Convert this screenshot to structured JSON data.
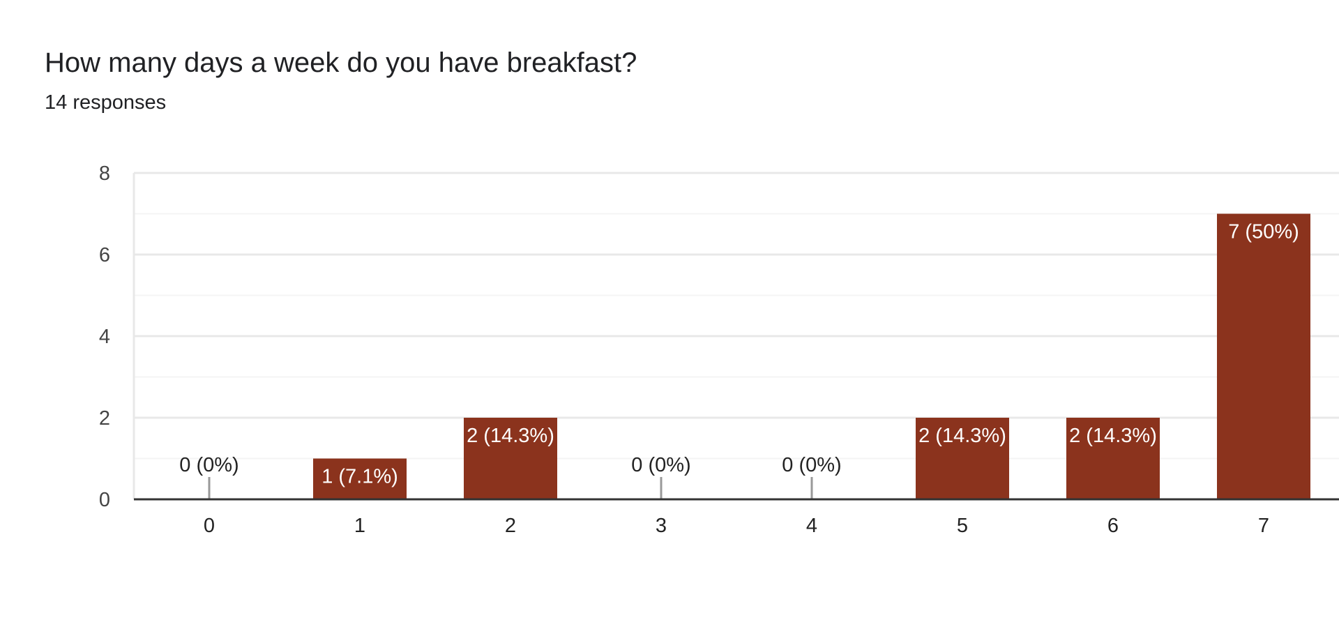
{
  "header": {
    "title": "How many days a week do you have breakfast?",
    "subtitle": "14 responses"
  },
  "chart_data": {
    "type": "bar",
    "title": "How many days a week do you have breakfast?",
    "subtitle": "14 responses",
    "xlabel": "",
    "ylabel": "",
    "categories": [
      "0",
      "1",
      "2",
      "3",
      "4",
      "5",
      "6",
      "7"
    ],
    "values": [
      0,
      1,
      2,
      0,
      0,
      2,
      2,
      7
    ],
    "data_labels": [
      "0 (0%)",
      "1 (7.1%)",
      "2 (14.3%)",
      "0 (0%)",
      "0 (0%)",
      "2 (14.3%)",
      "2 (14.3%)",
      "7 (50%)"
    ],
    "ylim": [
      0,
      8
    ],
    "yticks": [
      0,
      2,
      4,
      6,
      8
    ],
    "grid": true,
    "legend": "none",
    "colors": {
      "bar": "#8b331d",
      "bar_label": "#ffffff",
      "outside_label": "#222222",
      "grid_major": "#e8e8e8",
      "grid_minor": "#f4f4f4",
      "axis": "#333333",
      "zero_stub": "#999999"
    }
  }
}
